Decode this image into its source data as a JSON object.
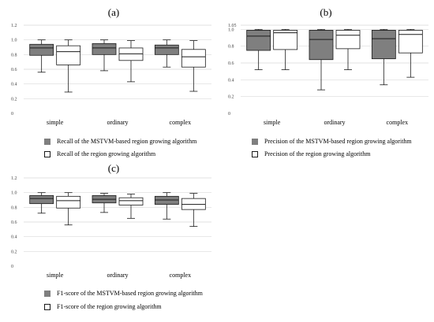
{
  "colors": {
    "dark": "#7f7f7f",
    "light": "#ffffff",
    "stroke": "#1a1a1a",
    "grid": "#d9d9d9"
  },
  "chart_data": [
    {
      "panel": "(a)",
      "type": "box",
      "categories": [
        "simple",
        "ordinary",
        "complex"
      ],
      "ylim": [
        0,
        1.2
      ],
      "yticks": [
        "0",
        "0.2",
        "0.4",
        "0.6",
        "0.8",
        "1.0",
        "1.2"
      ],
      "grid": true,
      "series": [
        {
          "name": "Recall of the MSTVM-based region growing algorithm",
          "color": "dark",
          "boxes": [
            {
              "min": 0.56,
              "q1": 0.79,
              "median": 0.89,
              "q3": 0.94,
              "max": 1.0
            },
            {
              "min": 0.58,
              "q1": 0.8,
              "median": 0.89,
              "q3": 0.95,
              "max": 1.0
            },
            {
              "min": 0.63,
              "q1": 0.8,
              "median": 0.89,
              "q3": 0.93,
              "max": 1.0
            }
          ]
        },
        {
          "name": "Recall of the region growing algorithm",
          "color": "light",
          "boxes": [
            {
              "min": 0.29,
              "q1": 0.66,
              "median": 0.84,
              "q3": 0.92,
              "max": 1.0
            },
            {
              "min": 0.43,
              "q1": 0.72,
              "median": 0.81,
              "q3": 0.89,
              "max": 0.99
            },
            {
              "min": 0.3,
              "q1": 0.63,
              "median": 0.77,
              "q3": 0.87,
              "max": 0.99
            }
          ]
        }
      ]
    },
    {
      "panel": "(b)",
      "type": "box",
      "categories": [
        "simple",
        "ordinary",
        "complex"
      ],
      "ylim": [
        0,
        1.05
      ],
      "yticks": [
        "0",
        "0.2",
        "0.4",
        "0.6",
        "0.8",
        "1.0",
        "1.05"
      ],
      "grid": true,
      "series": [
        {
          "name": "Precision of the MSTVM-based region growing algorithm",
          "color": "dark",
          "boxes": [
            {
              "min": 0.52,
              "q1": 0.75,
              "median": 0.92,
              "q3": 0.99,
              "max": 1.0
            },
            {
              "min": 0.28,
              "q1": 0.64,
              "median": 0.88,
              "q3": 0.99,
              "max": 1.0
            },
            {
              "min": 0.34,
              "q1": 0.65,
              "median": 0.89,
              "q3": 0.99,
              "max": 1.0
            }
          ]
        },
        {
          "name": "Precision of the region growing algorithm",
          "color": "light",
          "boxes": [
            {
              "min": 0.52,
              "q1": 0.76,
              "median": 0.96,
              "q3": 0.99,
              "max": 1.0
            },
            {
              "min": 0.52,
              "q1": 0.77,
              "median": 0.93,
              "q3": 0.99,
              "max": 1.0
            },
            {
              "min": 0.43,
              "q1": 0.72,
              "median": 0.94,
              "q3": 0.99,
              "max": 1.0
            }
          ]
        }
      ]
    },
    {
      "panel": "(c)",
      "type": "box",
      "categories": [
        "simple",
        "ordinary",
        "complex"
      ],
      "ylim": [
        0,
        1.2
      ],
      "yticks": [
        "0",
        "0.2",
        "0.4",
        "0.6",
        "0.8",
        "1.0",
        "1.2"
      ],
      "grid": true,
      "series": [
        {
          "name": "F1-score of the MSTVM-based region growing algorithm",
          "color": "dark",
          "boxes": [
            {
              "min": 0.72,
              "q1": 0.85,
              "median": 0.92,
              "q3": 0.96,
              "max": 1.0
            },
            {
              "min": 0.73,
              "q1": 0.86,
              "median": 0.91,
              "q3": 0.96,
              "max": 0.99
            },
            {
              "min": 0.64,
              "q1": 0.84,
              "median": 0.9,
              "q3": 0.95,
              "max": 1.0
            }
          ]
        },
        {
          "name": "F1-score of the region growing algorithm",
          "color": "light",
          "boxes": [
            {
              "min": 0.56,
              "q1": 0.79,
              "median": 0.89,
              "q3": 0.95,
              "max": 1.0
            },
            {
              "min": 0.65,
              "q1": 0.83,
              "median": 0.89,
              "q3": 0.93,
              "max": 0.98
            },
            {
              "min": 0.54,
              "q1": 0.77,
              "median": 0.84,
              "q3": 0.92,
              "max": 0.99
            }
          ]
        }
      ]
    }
  ]
}
